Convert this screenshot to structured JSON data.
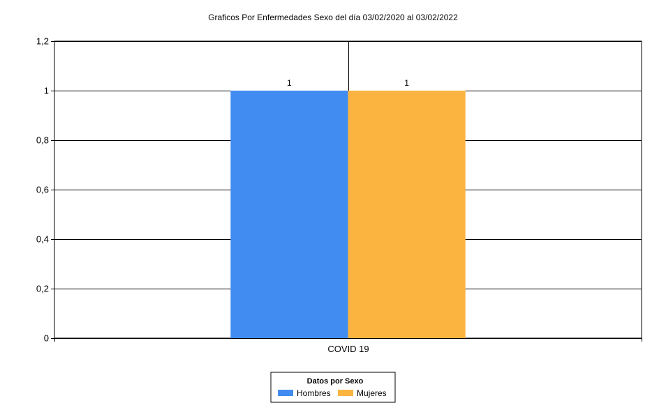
{
  "chart_data": {
    "type": "bar",
    "title": "Graficos Por Enfermedades Sexo del día 03/02/2020 al 03/02/2022",
    "categories": [
      "COVID 19"
    ],
    "series": [
      {
        "name": "Hombres",
        "values": [
          1
        ],
        "color": "#418cf0"
      },
      {
        "name": "Mujeres",
        "values": [
          1
        ],
        "color": "#fcb441"
      }
    ],
    "data_labels": [
      "1",
      "1"
    ],
    "ylim": [
      0,
      1.2
    ],
    "yticks": [
      "0",
      "0,2",
      "0,4",
      "0,6",
      "0,8",
      "1",
      "1,2"
    ],
    "xlabel": "",
    "ylabel": "",
    "grid": true,
    "legend": {
      "title": "Datos por Sexo",
      "position": "bottom-center"
    }
  }
}
